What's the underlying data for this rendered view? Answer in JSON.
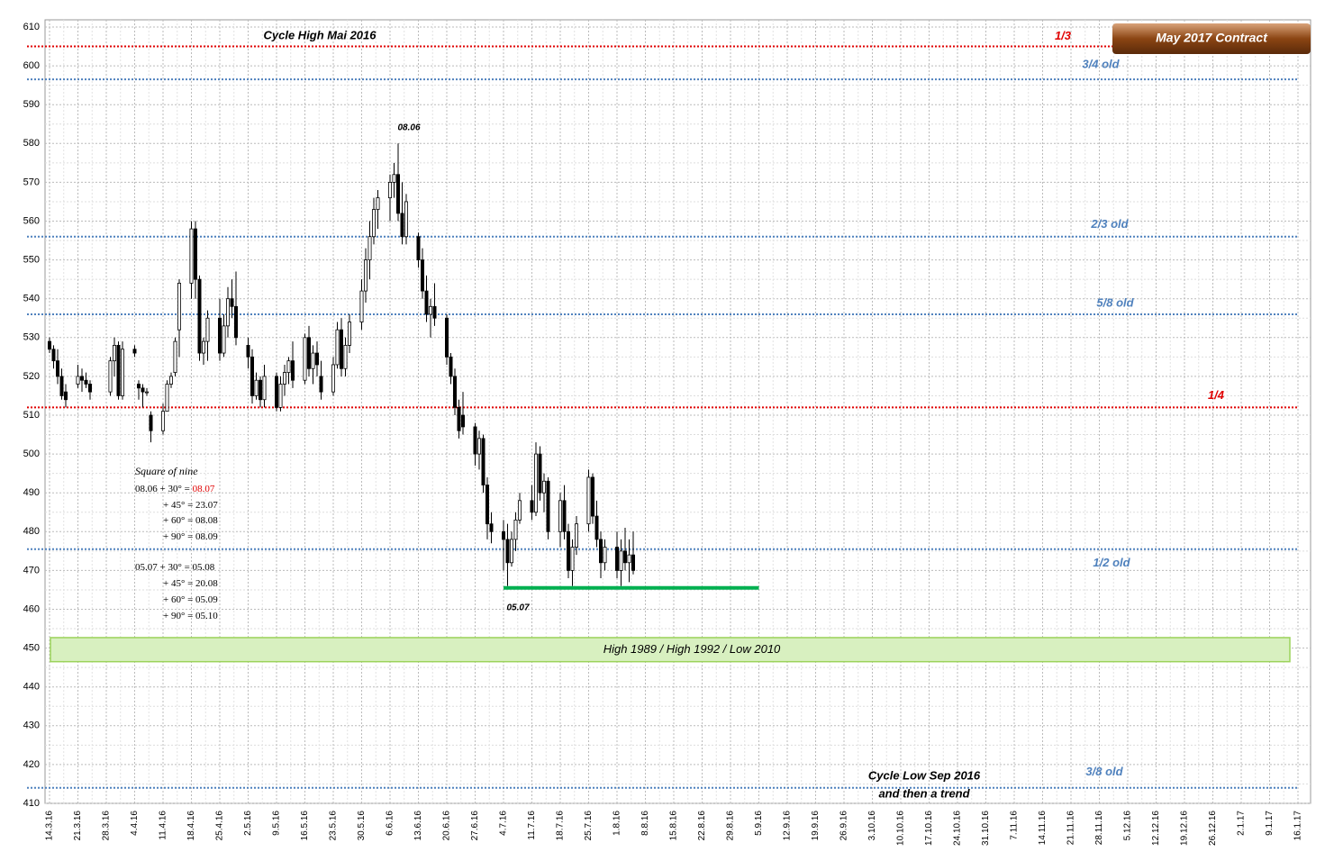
{
  "chart_data": {
    "type": "candlestick",
    "title": "May 2017 Contract",
    "ylim": [
      410,
      610
    ],
    "yticks": [
      410,
      420,
      430,
      440,
      450,
      460,
      470,
      480,
      490,
      500,
      510,
      520,
      530,
      540,
      550,
      560,
      570,
      580,
      590,
      600,
      610
    ],
    "xlim": [
      "14.3.16",
      "16.1.17"
    ],
    "xticks": [
      "14.3.16",
      "21.3.16",
      "28.3.16",
      "4.4.16",
      "11.4.16",
      "18.4.16",
      "25.4.16",
      "2.5.16",
      "9.5.16",
      "16.5.16",
      "23.5.16",
      "30.5.16",
      "6.6.16",
      "13.6.16",
      "20.6.16",
      "27.6.16",
      "4.7.16",
      "11.7.16",
      "18.7.16",
      "25.7.16",
      "1.8.16",
      "8.8.16",
      "15.8.16",
      "22.8.16",
      "29.8.16",
      "5.9.16",
      "12.9.16",
      "19.9.16",
      "26.9.16",
      "3.10.16",
      "10.10.16",
      "17.10.16",
      "24.10.16",
      "31.10.16",
      "7.11.16",
      "14.11.16",
      "21.11.16",
      "28.11.16",
      "5.12.16",
      "12.12.16",
      "19.12.16",
      "26.12.16",
      "2.1.17",
      "9.1.17",
      "16.1.17"
    ],
    "grid": true,
    "up_color": "#ffffff",
    "down_color": "#000000",
    "x": [
      "14.3.16",
      "15.3.16",
      "16.3.16",
      "17.3.16",
      "18.3.16",
      "21.3.16",
      "22.3.16",
      "23.3.16",
      "24.3.16",
      "29.3.16",
      "30.3.16",
      "31.3.16",
      "1.4.16",
      "4.4.16",
      "5.4.16",
      "6.4.16",
      "7.4.16",
      "8.4.16",
      "11.4.16",
      "12.4.16",
      "13.4.16",
      "14.4.16",
      "15.4.16",
      "18.4.16",
      "19.4.16",
      "20.4.16",
      "21.4.16",
      "22.4.16",
      "25.4.16",
      "26.4.16",
      "27.4.16",
      "28.4.16",
      "29.4.16",
      "2.5.16",
      "3.5.16",
      "4.5.16",
      "5.5.16",
      "6.5.16",
      "9.5.16",
      "10.5.16",
      "11.5.16",
      "12.5.16",
      "13.5.16",
      "16.5.16",
      "17.5.16",
      "18.5.16",
      "19.5.16",
      "20.5.16",
      "23.5.16",
      "24.5.16",
      "25.5.16",
      "26.5.16",
      "27.5.16",
      "30.5.16",
      "31.5.16",
      "1.6.16",
      "2.6.16",
      "3.6.16",
      "6.6.16",
      "7.6.16",
      "8.6.16",
      "9.6.16",
      "10.6.16",
      "13.6.16",
      "14.6.16",
      "15.6.16",
      "16.6.16",
      "17.6.16",
      "20.6.16",
      "21.6.16",
      "22.6.16",
      "23.6.16",
      "24.6.16",
      "27.6.16",
      "28.6.16",
      "29.6.16",
      "30.6.16",
      "1.7.16",
      "4.7.16",
      "5.7.16",
      "6.7.16",
      "7.7.16",
      "8.7.16",
      "11.7.16",
      "12.7.16",
      "13.7.16",
      "14.7.16",
      "15.7.16",
      "18.7.16",
      "19.7.16",
      "20.7.16",
      "21.7.16",
      "22.7.16",
      "25.7.16",
      "26.7.16",
      "27.7.16",
      "28.7.16",
      "29.7.16",
      "1.8.16",
      "2.8.16",
      "3.8.16",
      "4.8.16",
      "5.8.16"
    ],
    "open": [
      529,
      527,
      524,
      520,
      516,
      518,
      520,
      519,
      518,
      516,
      524,
      528,
      515,
      527,
      518,
      517,
      516,
      510,
      506,
      511,
      518,
      521,
      532,
      544,
      558,
      545,
      526,
      529,
      535,
      526,
      533,
      540,
      538,
      528,
      525,
      515,
      519,
      514,
      520,
      512,
      518,
      521,
      524,
      519,
      530,
      522,
      526,
      520,
      516,
      523,
      532,
      522,
      528,
      534,
      542,
      550,
      556,
      563,
      566,
      570,
      572,
      562,
      556,
      556,
      550,
      542,
      536,
      538,
      535,
      525,
      520,
      512,
      510,
      507,
      500,
      504,
      492,
      482,
      480,
      478,
      472,
      478,
      483,
      488,
      485,
      500,
      490,
      493,
      480,
      488,
      480,
      470,
      476,
      482,
      494,
      484,
      478,
      472,
      476,
      470,
      475,
      472,
      474
    ],
    "high": [
      530,
      528,
      527,
      522,
      518,
      523,
      522,
      521,
      519,
      525,
      530,
      529,
      529,
      528,
      519,
      518,
      517,
      511,
      513,
      519,
      521,
      530,
      545,
      560,
      560,
      546,
      530,
      537,
      540,
      536,
      543,
      545,
      547,
      530,
      527,
      521,
      520,
      523,
      521,
      520,
      523,
      525,
      529,
      531,
      533,
      528,
      529,
      524,
      525,
      534,
      535,
      530,
      536,
      545,
      553,
      560,
      566,
      568,
      572,
      575,
      580,
      570,
      567,
      557,
      553,
      546,
      540,
      544,
      536,
      526,
      522,
      514,
      516,
      508,
      506,
      505,
      494,
      485,
      483,
      482,
      480,
      485,
      490,
      492,
      503,
      502,
      495,
      494,
      490,
      492,
      482,
      478,
      484,
      496,
      495,
      488,
      480,
      478,
      480,
      478,
      481,
      478,
      480
    ],
    "low": [
      526,
      522,
      518,
      514,
      512,
      517,
      516,
      517,
      514,
      515,
      520,
      514,
      514,
      525,
      514,
      512,
      515,
      503,
      505,
      511,
      517,
      520,
      525,
      540,
      540,
      524,
      523,
      524,
      524,
      525,
      530,
      535,
      528,
      522,
      513,
      514,
      512,
      512,
      511,
      511,
      515,
      518,
      517,
      518,
      520,
      518,
      520,
      514,
      515,
      522,
      520,
      520,
      526,
      532,
      539,
      545,
      554,
      558,
      560,
      566,
      560,
      554,
      554,
      548,
      540,
      534,
      530,
      533,
      523,
      518,
      510,
      504,
      505,
      497,
      496,
      490,
      478,
      477,
      470,
      466,
      471,
      475,
      482,
      483,
      484,
      488,
      485,
      478,
      476,
      478,
      468,
      466,
      474,
      480,
      482,
      476,
      468,
      470,
      468,
      466,
      470,
      467,
      469
    ],
    "close": [
      527,
      524,
      520,
      515,
      514,
      520,
      519,
      518,
      516,
      524,
      528,
      515,
      527,
      526,
      517,
      516,
      516,
      506,
      511,
      518,
      520,
      529,
      544,
      558,
      545,
      526,
      529,
      535,
      526,
      533,
      540,
      538,
      530,
      525,
      515,
      519,
      514,
      520,
      512,
      518,
      521,
      524,
      519,
      530,
      522,
      526,
      523,
      516,
      523,
      532,
      522,
      528,
      534,
      542,
      550,
      556,
      563,
      566,
      570,
      572,
      562,
      556,
      565,
      550,
      542,
      536,
      538,
      535,
      525,
      520,
      512,
      506,
      507,
      500,
      504,
      492,
      482,
      480,
      478,
      472,
      478,
      483,
      488,
      485,
      500,
      490,
      493,
      480,
      488,
      480,
      470,
      476,
      482,
      494,
      484,
      478,
      472,
      476,
      470,
      475,
      472,
      474,
      470
    ],
    "levels": [
      {
        "label": "1/3",
        "value": 605,
        "color": "#e00000"
      },
      {
        "label": "3/4 old",
        "value": 596.5,
        "color": "#4f81bd"
      },
      {
        "label": "2/3 old",
        "value": 556,
        "color": "#4f81bd"
      },
      {
        "label": "5/8 old",
        "value": 536,
        "color": "#4f81bd"
      },
      {
        "label": "1/4",
        "value": 512,
        "color": "#e00000"
      },
      {
        "label": "1/2 old",
        "value": 475.5,
        "color": "#4f81bd"
      },
      {
        "label": "3/8 old",
        "value": 414,
        "color": "#4f81bd"
      }
    ],
    "support": {
      "value": 465.5,
      "from": "4.7.16",
      "to": "5.9.16",
      "color": "#00b050"
    },
    "zone": {
      "label": "High 1989 / High 1992 / Low 2010",
      "range": [
        446.5,
        452.7
      ],
      "color": "#d8f0c0"
    },
    "annotations": [
      "Cycle High Mai 2016",
      "08.06",
      "05.07",
      "Cycle Low Sep 2016",
      "and then a trend"
    ],
    "square_of_nine": {
      "title": "Square of nine",
      "lines": [
        [
          "08.06 + 30° = ",
          "08.07"
        ],
        [
          "+ 45° = 23.07"
        ],
        [
          "+ 60° = 08.08"
        ],
        [
          "+ 90° = 08.09"
        ],
        [
          "05.07 + 30° = 05.08"
        ],
        [
          "+ 45° = 20.08"
        ],
        [
          "+ 60° = 05.09"
        ],
        [
          "+ 90° = 05.10"
        ]
      ]
    }
  }
}
